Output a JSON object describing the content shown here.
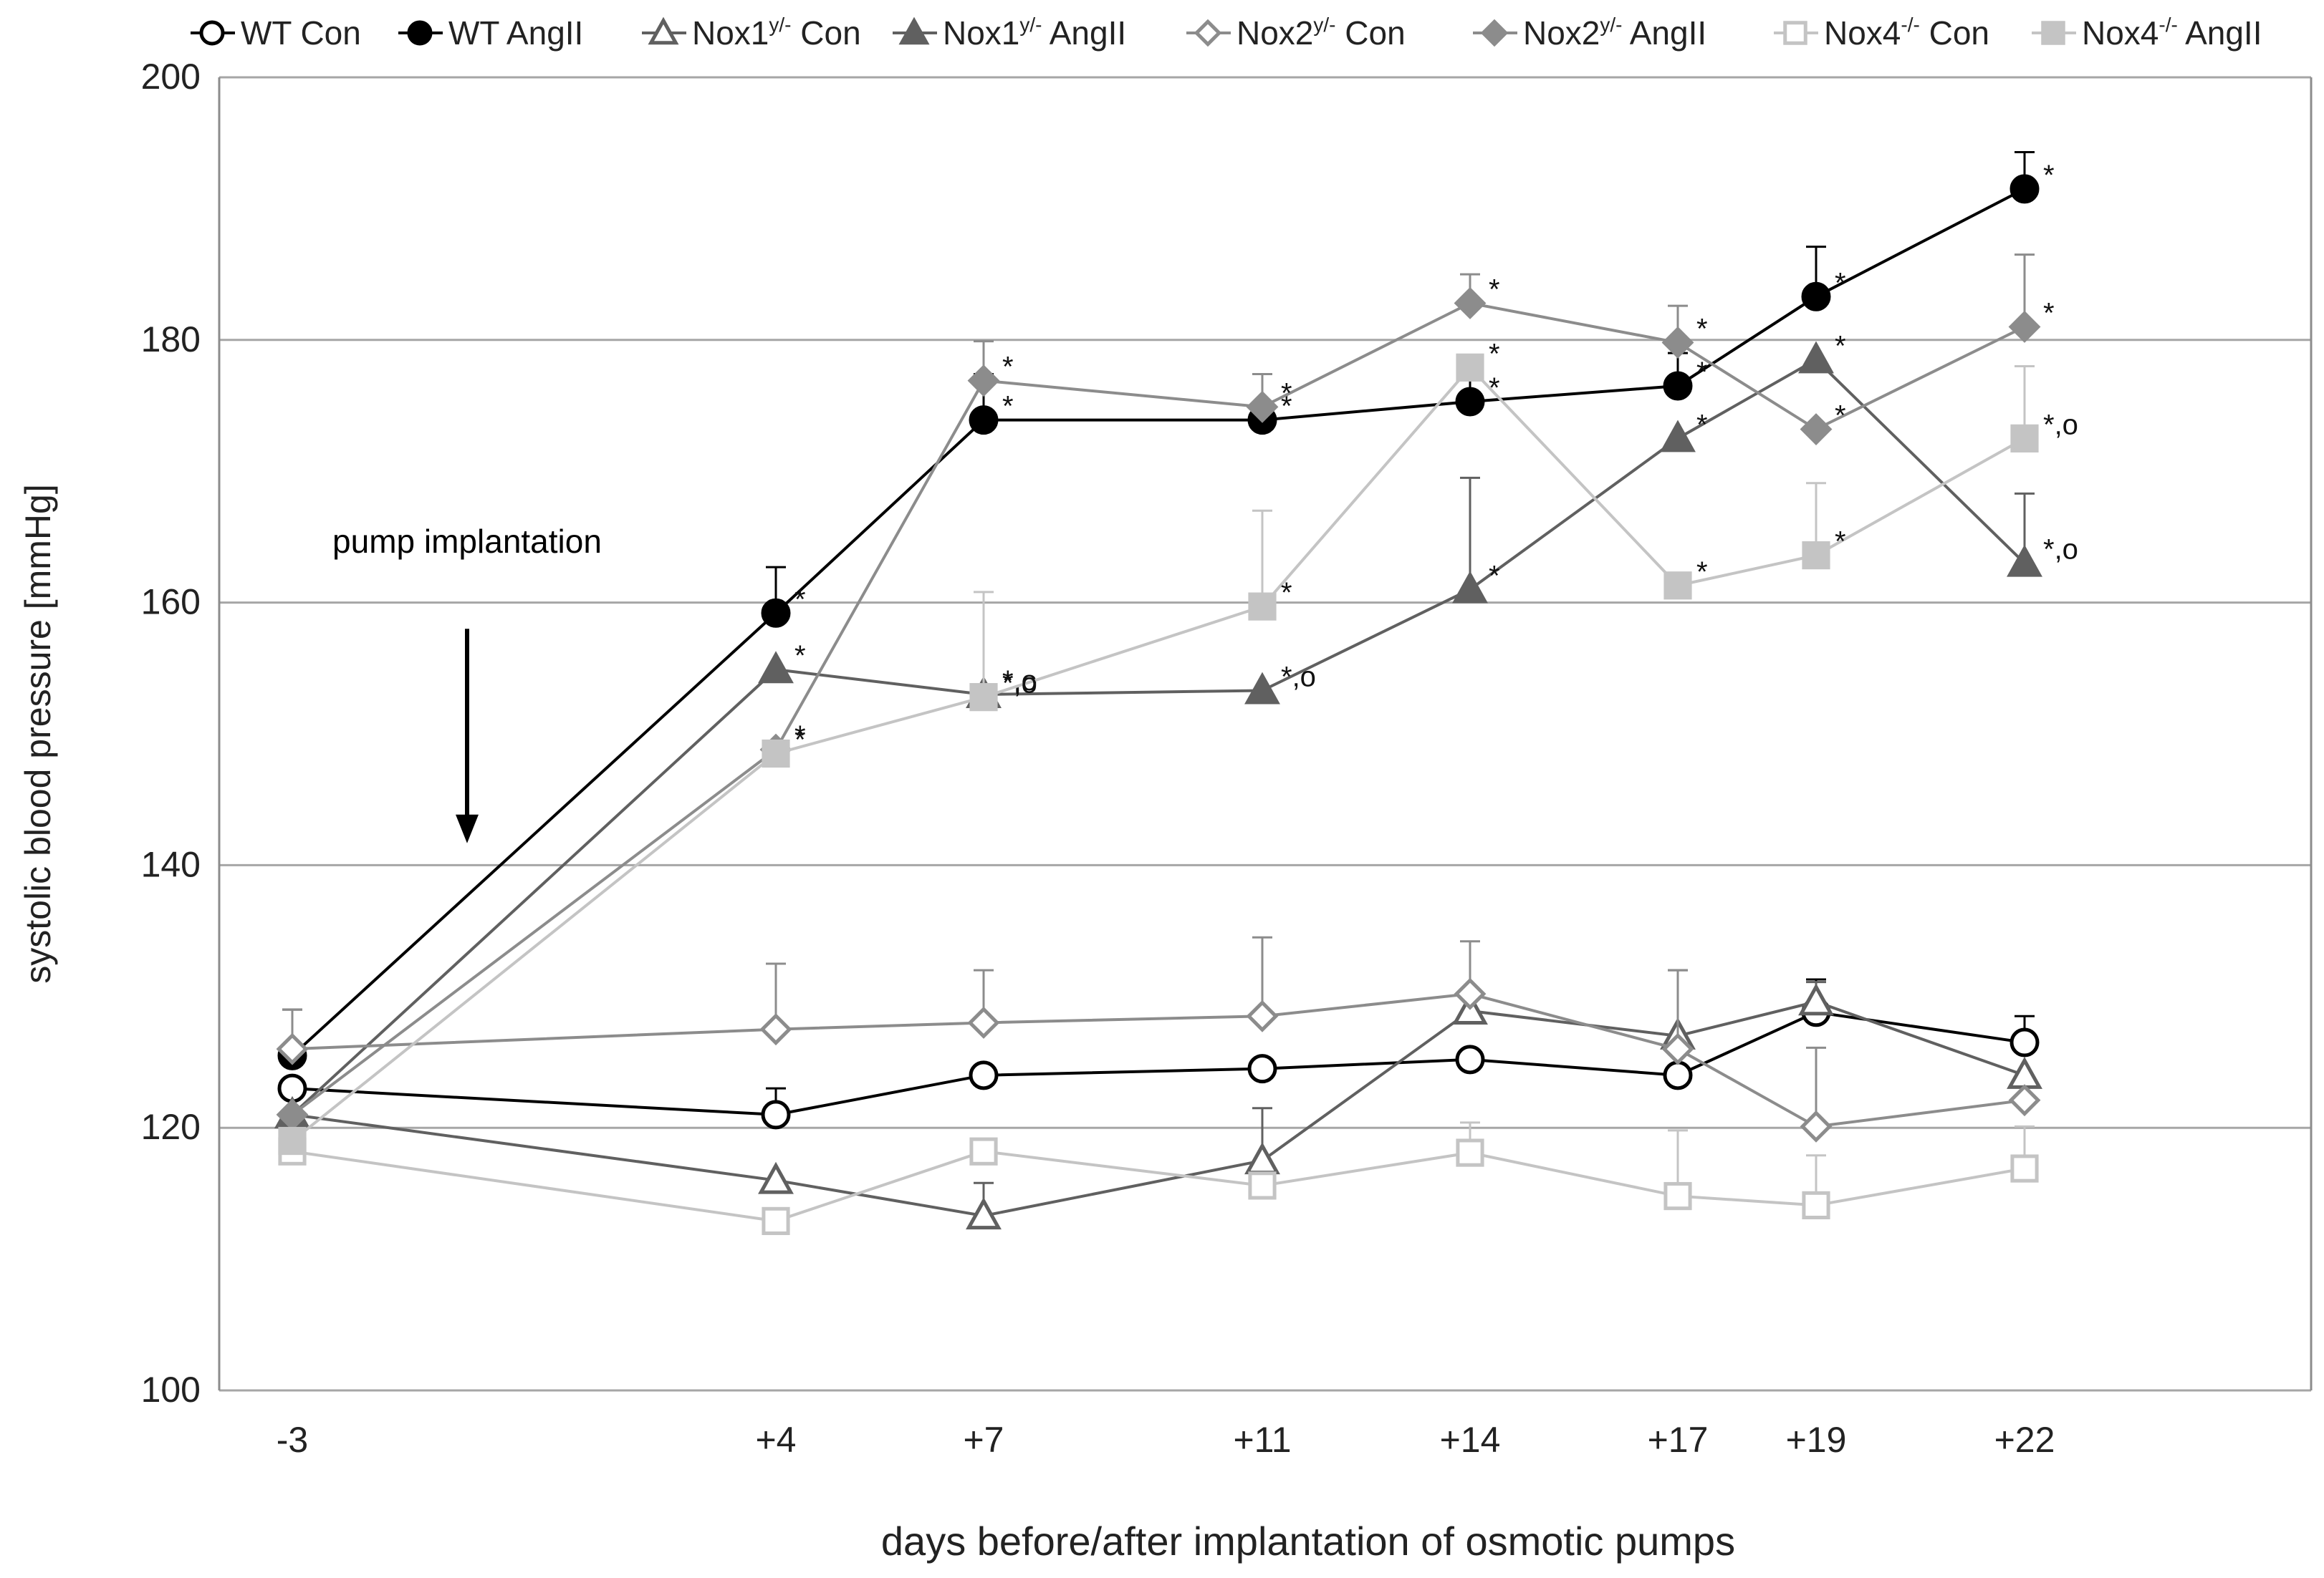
{
  "chart_data": {
    "type": "line",
    "title": "",
    "xlabel": "days before/after implantation of osmotic pumps",
    "ylabel": "systolic blood pressure [mmHg]",
    "x": [
      -3,
      4,
      7,
      11,
      14,
      17,
      19,
      22
    ],
    "x_tick_labels": [
      "-3",
      "+4",
      "+7",
      "+11",
      "+14",
      "+17",
      "+19",
      "+22"
    ],
    "xlim": [
      -3,
      22
    ],
    "ylim": [
      100,
      200
    ],
    "y_ticks": [
      100,
      120,
      140,
      160,
      180,
      200
    ],
    "grid": true,
    "legend_position": "top",
    "annotation": {
      "text": "pump implantation",
      "x": 0.5,
      "y_from": 158,
      "y_to": 142
    },
    "series": [
      {
        "name": "WT Con",
        "label_base": "WT Con",
        "sup": "",
        "color": "#000000",
        "marker": "circle",
        "filled": false,
        "values": [
          123,
          121,
          124,
          124.5,
          125.2,
          124,
          128.8,
          126.5
        ],
        "errors": [
          0,
          2,
          0,
          0,
          0,
          0,
          2.5,
          2
        ],
        "sig": [
          "",
          "",
          "",
          "",
          "",
          "",
          "",
          ""
        ]
      },
      {
        "name": "WT AngII",
        "label_base": "WT AngII",
        "sup": "",
        "color": "#000000",
        "marker": "circle",
        "filled": true,
        "values": [
          125.5,
          159.2,
          173.9,
          173.9,
          175.3,
          176.5,
          183.3,
          191.5
        ],
        "errors": [
          3.5,
          3.5,
          3.5,
          3.5,
          2.5,
          2.5,
          3.8,
          2.8
        ],
        "sig": [
          "",
          "*",
          "*",
          "*",
          "*",
          "*",
          "*",
          "*"
        ]
      },
      {
        "name": "Nox1y/- Con",
        "label_base": "Nox1",
        "sup": "y/-",
        "label_suffix": " Con",
        "color": "#606060",
        "marker": "triangle",
        "filled": false,
        "values": [
          121,
          116,
          113.3,
          117.5,
          128.9,
          127,
          129.6,
          124
        ],
        "errors": [
          0,
          0,
          2.5,
          4,
          0,
          5,
          1.5,
          0
        ],
        "sig": [
          "",
          "",
          "",
          "",
          "",
          "",
          "",
          ""
        ]
      },
      {
        "name": "Nox1y/- AngII",
        "label_base": "Nox1",
        "sup": "y/-",
        "label_suffix": " AngII",
        "color": "#606060",
        "marker": "triangle",
        "filled": true,
        "values": [
          121,
          154.9,
          153,
          153.3,
          161,
          172.5,
          178.5,
          163
        ],
        "errors": [
          0,
          0,
          0,
          0,
          8.5,
          0,
          0,
          5.3
        ],
        "sig": [
          "",
          "*",
          "*,o",
          "*,o",
          "*",
          "*",
          "*",
          "*,o"
        ]
      },
      {
        "name": "Nox2y/- Con",
        "label_base": "Nox2",
        "sup": "y/-",
        "label_suffix": " Con",
        "color": "#8c8c8c",
        "marker": "diamond",
        "filled": false,
        "values": [
          126,
          127.5,
          128,
          128.5,
          130.2,
          126,
          120.1,
          122.1
        ],
        "errors": [
          3,
          5,
          4,
          6,
          4,
          6,
          6,
          0
        ],
        "sig": [
          "",
          "",
          "",
          "",
          "",
          "",
          "",
          ""
        ]
      },
      {
        "name": "Nox2y/- AngII",
        "label_base": "Nox2",
        "sup": "y/-",
        "label_suffix": " AngII",
        "color": "#8c8c8c",
        "marker": "diamond",
        "filled": true,
        "values": [
          121,
          148.8,
          176.9,
          174.9,
          182.8,
          179.8,
          173.2,
          181
        ],
        "errors": [
          0,
          0,
          3,
          2.5,
          2.2,
          2.8,
          0,
          5.5
        ],
        "sig": [
          "",
          "*",
          "*",
          "*",
          "*",
          "*",
          "*",
          "*"
        ]
      },
      {
        "name": "Nox4-/- Con",
        "label_base": "Nox4",
        "sup": "-/-",
        "label_suffix": " Con",
        "color": "#c4c4c4",
        "marker": "square",
        "filled": false,
        "values": [
          118.2,
          112.9,
          118.2,
          115.6,
          118.1,
          114.8,
          114.1,
          116.9
        ],
        "errors": [
          0,
          0,
          0,
          0,
          2.3,
          5,
          3.8,
          3.2
        ],
        "sig": [
          "",
          "",
          "",
          "",
          "",
          "",
          "",
          ""
        ]
      },
      {
        "name": "Nox4-/- AngII",
        "label_base": "Nox4",
        "sup": "-/-",
        "label_suffix": " AngII",
        "color": "#c4c4c4",
        "marker": "square",
        "filled": true,
        "values": [
          119,
          148.5,
          152.8,
          159.7,
          177.9,
          161.3,
          163.6,
          172.5
        ],
        "errors": [
          0,
          0,
          8,
          7.3,
          0,
          0,
          5.5,
          5.5
        ],
        "sig": [
          "",
          "*",
          "*,o",
          "*",
          "*",
          "*",
          "*",
          "*,o"
        ]
      }
    ]
  }
}
